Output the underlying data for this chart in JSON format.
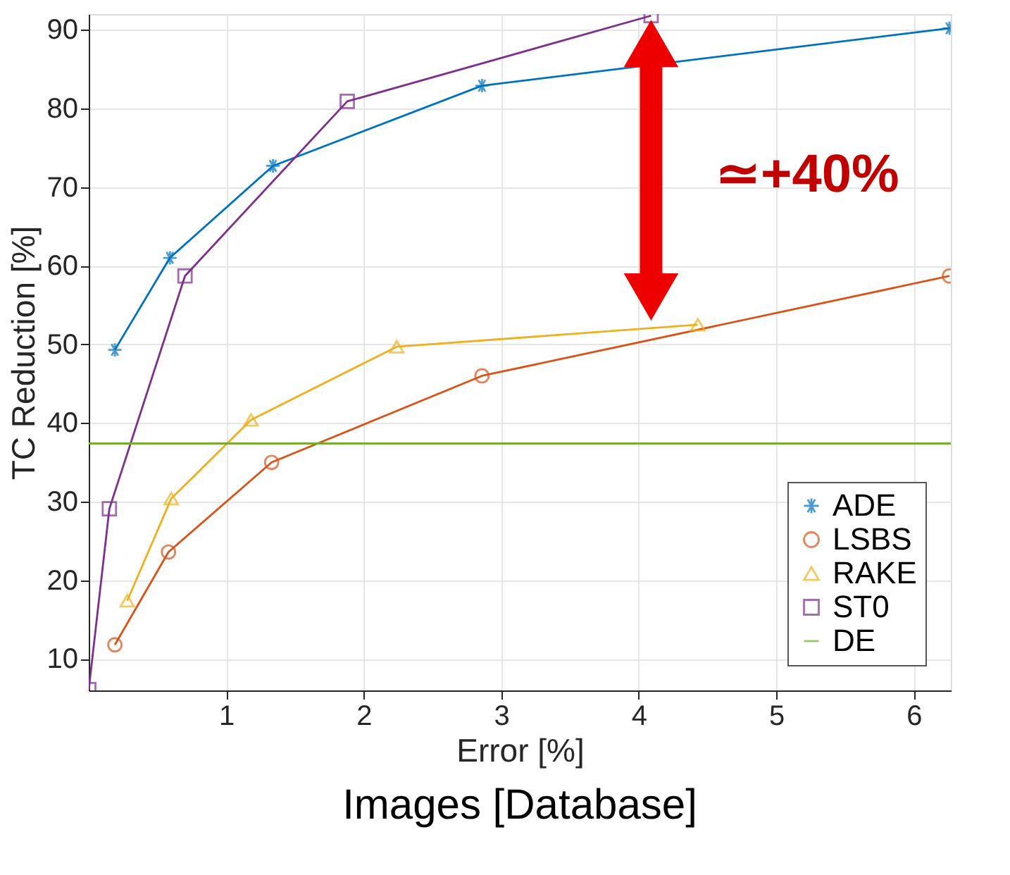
{
  "chart_data": {
    "type": "line",
    "title": "Images [Database]",
    "xlabel": "Error [%]",
    "ylabel": "TC Reduction [%]",
    "xlim": [
      0,
      6.27
    ],
    "ylim": [
      6,
      92
    ],
    "xticks": [
      1,
      2,
      3,
      4,
      5,
      6
    ],
    "yticks": [
      10,
      20,
      30,
      40,
      50,
      60,
      70,
      80,
      90
    ],
    "grid": true,
    "legend": "bottom right",
    "line_style": "solid",
    "series": [
      {
        "name": "ADE",
        "color": "#0072bd",
        "marker": "cross",
        "x": [
          0.19,
          0.59,
          1.34,
          2.86,
          6.26
        ],
        "values": [
          49.3,
          61,
          72.7,
          82.9,
          90.2
        ]
      },
      {
        "name": "LSBS",
        "color": "#d95319",
        "marker": "circle",
        "x": [
          0.19,
          0.58,
          1.33,
          2.86,
          6.26
        ],
        "values": [
          11.8,
          23.6,
          35,
          46,
          58.7
        ]
      },
      {
        "name": "RAKE",
        "color": "#edb120",
        "marker": "triangle",
        "x": [
          0.28,
          0.6,
          1.18,
          2.24,
          4.43
        ],
        "values": [
          17.4,
          30.4,
          40.4,
          49.7,
          52.5
        ]
      },
      {
        "name": "ST0",
        "color": "#7e2f8e",
        "marker": "square",
        "x": [
          0,
          0.15,
          0.7,
          1.88,
          4.09
        ],
        "values": [
          6.1,
          29.1,
          58.7,
          80.9,
          91.8
        ]
      },
      {
        "name": "DE",
        "color": "#77ac30",
        "marker": "none",
        "x": [
          0,
          6.27
        ],
        "values": [
          37.4,
          37.4
        ]
      }
    ],
    "annotations": [
      "≃+40%"
    ]
  }
}
